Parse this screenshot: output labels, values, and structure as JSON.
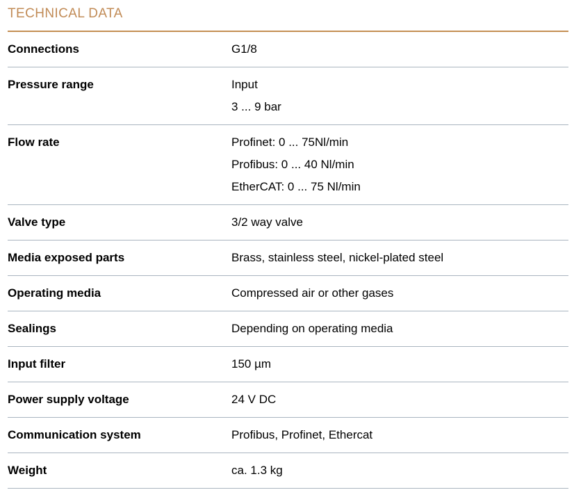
{
  "header": {
    "title": "TECHNICAL DATA"
  },
  "colors": {
    "heading_text": "#c18b56",
    "heading_rule": "#c48e52",
    "row_rule": "#a9b4bf",
    "body_text": "#000000"
  },
  "table": {
    "rows": [
      {
        "label": "Connections",
        "values": [
          "G1/8"
        ]
      },
      {
        "label": "Pressure range",
        "values": [
          "Input",
          "3 ... 9 bar"
        ]
      },
      {
        "label": "Flow rate",
        "values": [
          "Profinet: 0 ... 75Nl/min",
          "Profibus: 0 ... 40 Nl/min",
          "EtherCAT: 0 ... 75 Nl/min"
        ]
      },
      {
        "label": "Valve type",
        "values": [
          "3/2 way valve"
        ]
      },
      {
        "label": "Media exposed parts",
        "values": [
          "Brass, stainless steel, nickel-plated steel"
        ]
      },
      {
        "label": "Operating media",
        "values": [
          "Compressed air or other gases"
        ]
      },
      {
        "label": "Sealings",
        "values": [
          "Depending on operating media"
        ]
      },
      {
        "label": "Input filter",
        "values": [
          "150 µm"
        ]
      },
      {
        "label": "Power supply voltage",
        "values": [
          "24 V DC"
        ]
      },
      {
        "label": "Communication system",
        "values": [
          "Profibus, Profinet, Ethercat"
        ]
      },
      {
        "label": "Weight",
        "values": [
          "ca. 1.3 kg"
        ]
      }
    ]
  }
}
